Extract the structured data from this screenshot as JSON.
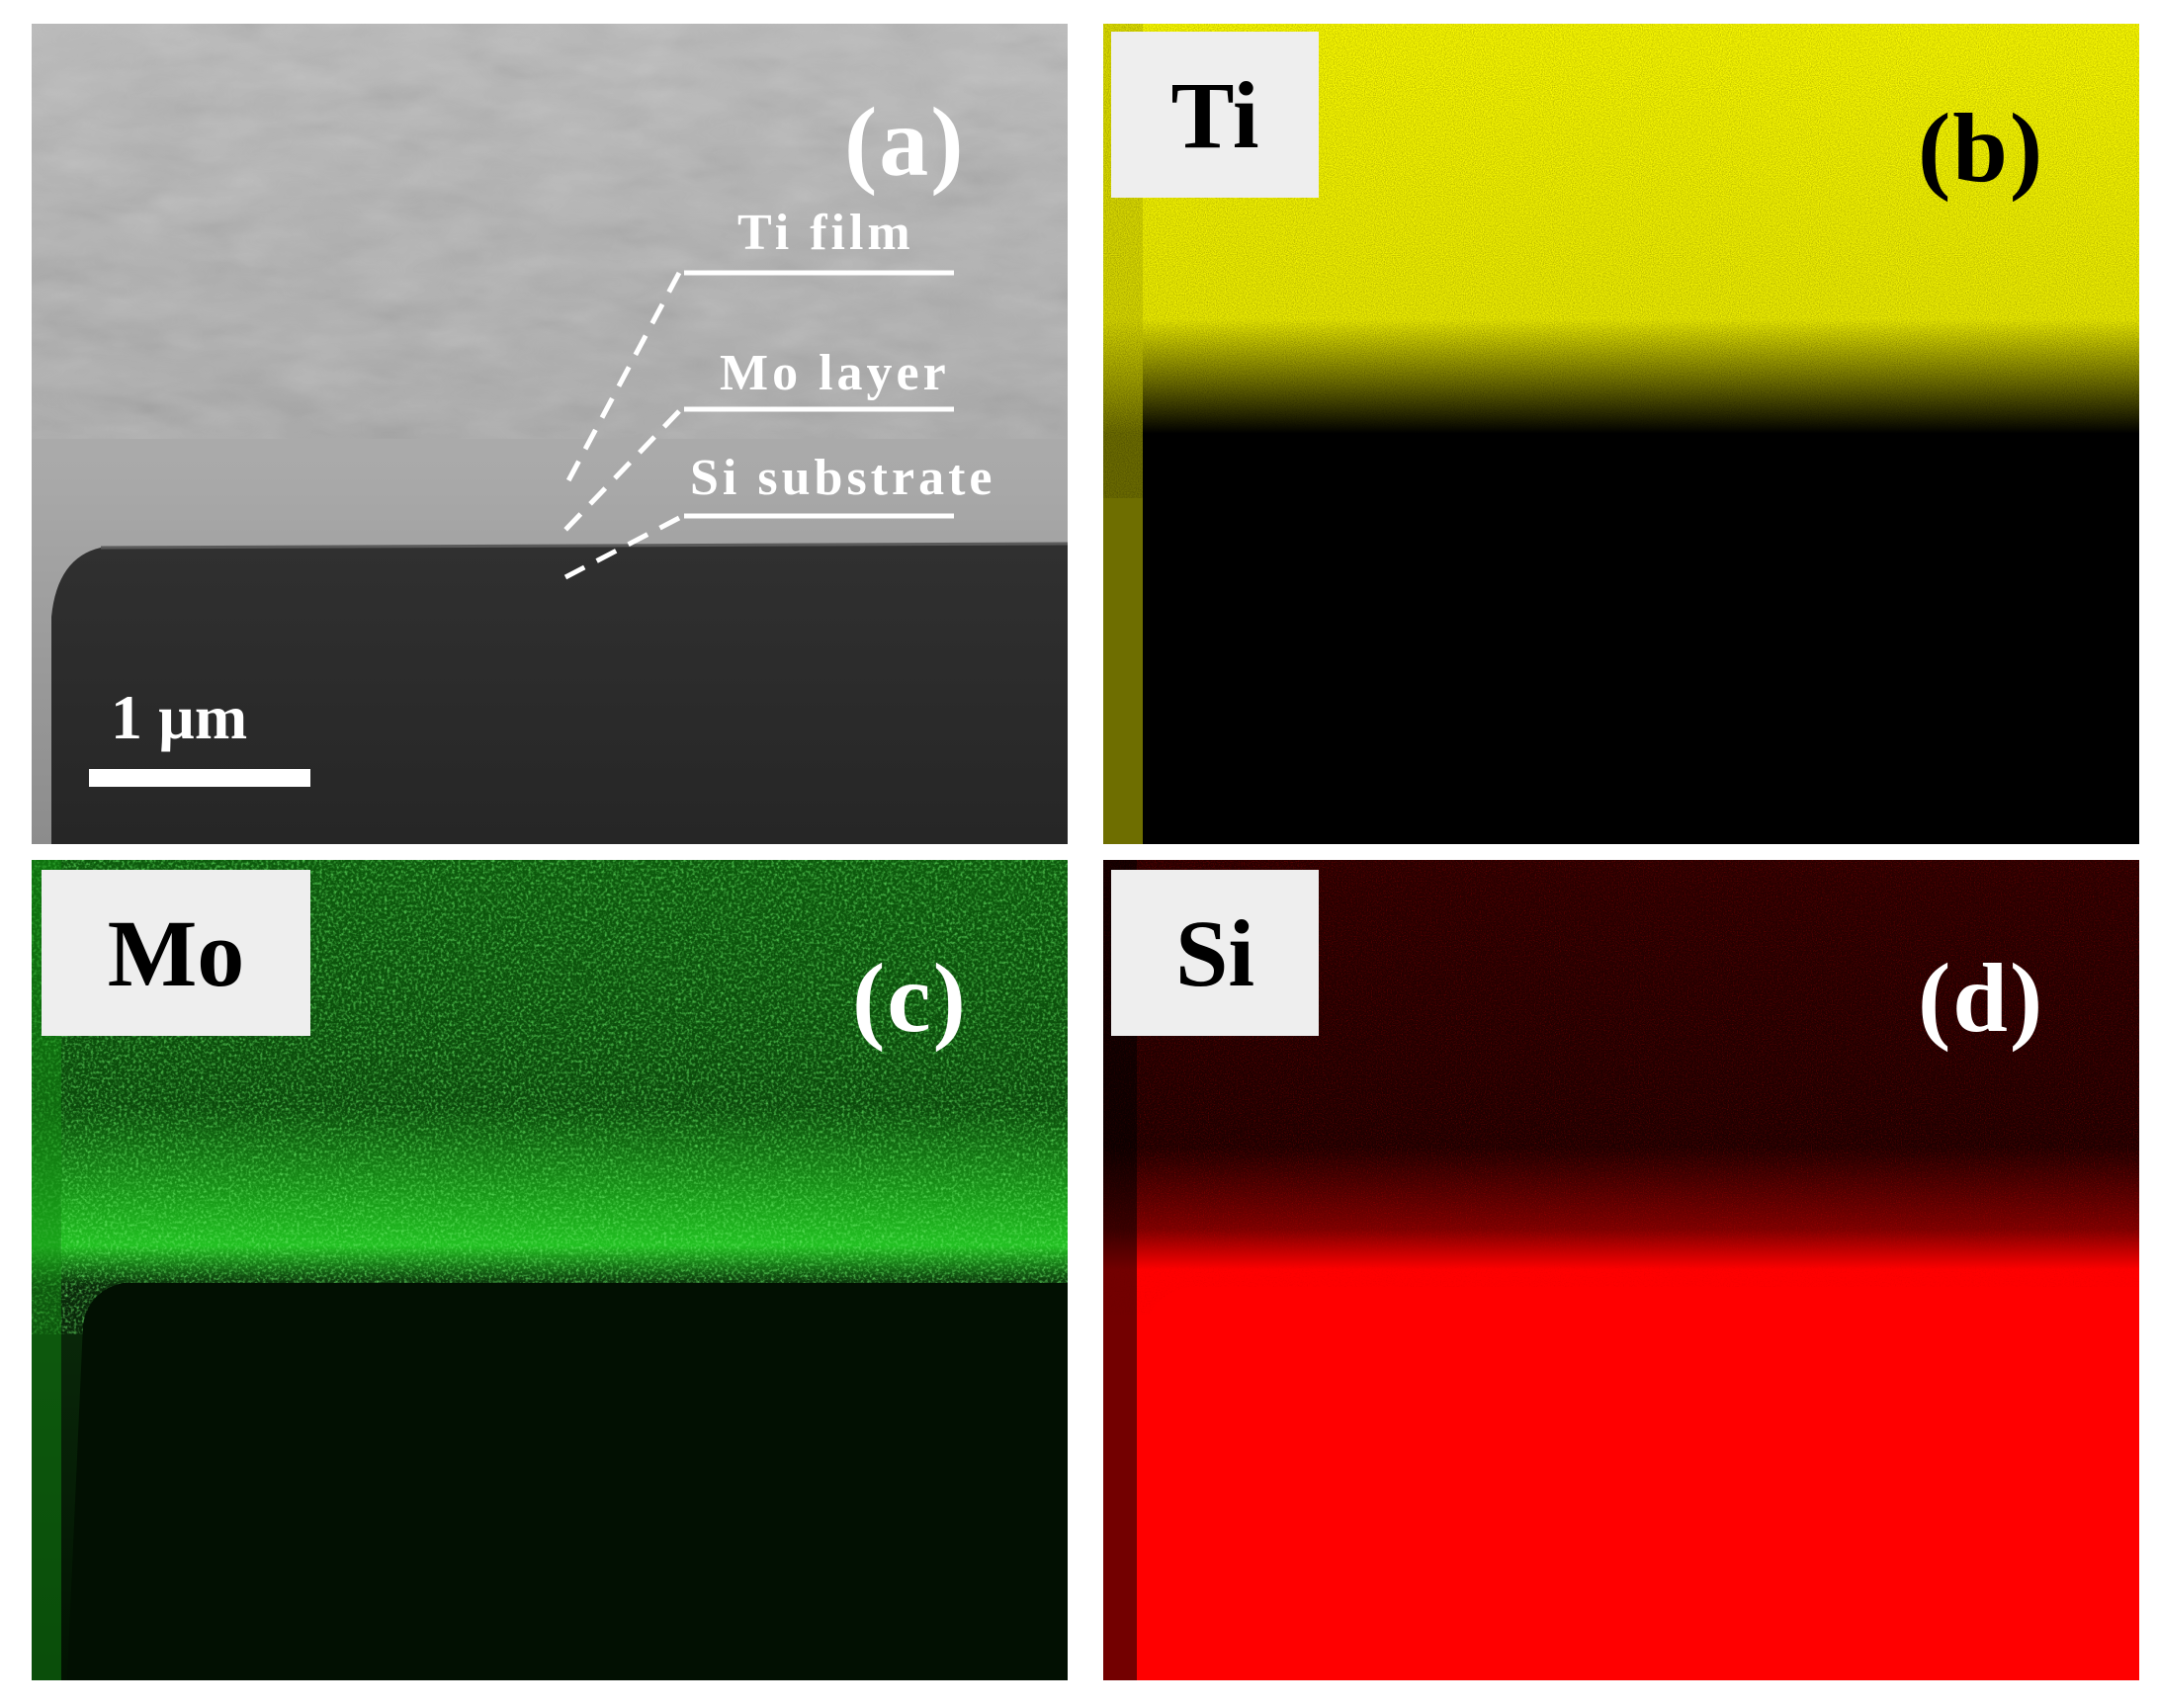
{
  "panels": {
    "a": {
      "letter": "(a)",
      "layers": [
        "Ti film",
        "Mo layer",
        "Si substrate"
      ],
      "scale_bar": "1 µm"
    },
    "b": {
      "letter": "(b)",
      "element": "Ti",
      "map_color": "#ffff00"
    },
    "c": {
      "letter": "(c)",
      "element": "Mo",
      "map_color": "#22cc22"
    },
    "d": {
      "letter": "(d)",
      "element": "Si",
      "map_color": "#ff0000"
    }
  }
}
